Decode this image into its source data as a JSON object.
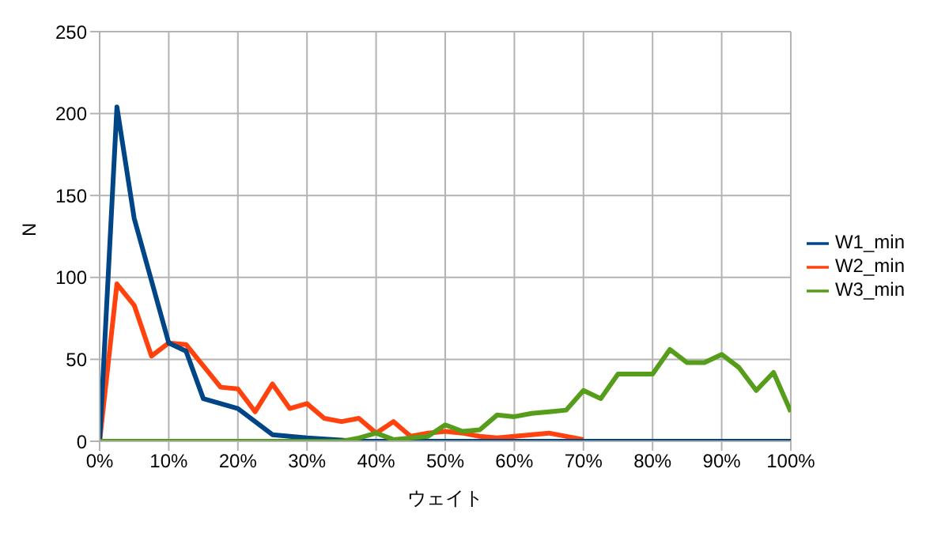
{
  "chart_data": {
    "type": "line",
    "xlabel": "ウェイト",
    "ylabel": "N",
    "x": [
      0,
      2.5,
      5,
      7.5,
      10,
      12.5,
      15,
      17.5,
      20,
      22.5,
      25,
      27.5,
      30,
      32.5,
      35,
      37.5,
      40,
      42.5,
      45,
      47.5,
      50,
      52.5,
      55,
      57.5,
      60,
      62.5,
      65,
      67.5,
      70,
      72.5,
      75,
      77.5,
      80,
      82.5,
      85,
      87.5,
      90,
      92.5,
      95,
      97.5,
      100
    ],
    "series": [
      {
        "name": "W2_min",
        "color": "#ff420e",
        "values": [
          0,
          96,
          83,
          52,
          60,
          59,
          46,
          33,
          32,
          18,
          35,
          20,
          23,
          14,
          12,
          14,
          5,
          12,
          3,
          5,
          6,
          5,
          3,
          2,
          null,
          null,
          5,
          null,
          1,
          null,
          null,
          null,
          null,
          null,
          null,
          null,
          null,
          null,
          null,
          null,
          null
        ]
      },
      {
        "name": "W1_min",
        "color": "#004586",
        "values": [
          0,
          204,
          136,
          98,
          60,
          55,
          26,
          23,
          20,
          12,
          4,
          null,
          2,
          null,
          null,
          0,
          0,
          0,
          0,
          0,
          0,
          0,
          0,
          0,
          0,
          0,
          0,
          0,
          0,
          0,
          0,
          0,
          0,
          0,
          0,
          0,
          0,
          0,
          0,
          0,
          0
        ]
      },
      {
        "name": "W3_min",
        "color": "#579d1c",
        "values": [
          0,
          0,
          0,
          0,
          0,
          0,
          0,
          0,
          0,
          0,
          0,
          0,
          0,
          0,
          0,
          2,
          5,
          1,
          2,
          3,
          10,
          6,
          7,
          16,
          15,
          17,
          18,
          19,
          31,
          26,
          41,
          41,
          41,
          56,
          48,
          48,
          53,
          45,
          31,
          42,
          18
        ]
      }
    ],
    "xlim": [
      0,
      100
    ],
    "xticks": [
      {
        "value": 0,
        "label": "0%"
      },
      {
        "value": 10,
        "label": "10%"
      },
      {
        "value": 20,
        "label": "20%"
      },
      {
        "value": 30,
        "label": "30%"
      },
      {
        "value": 40,
        "label": "40%"
      },
      {
        "value": 50,
        "label": "50%"
      },
      {
        "value": 60,
        "label": "60%"
      },
      {
        "value": 70,
        "label": "70%"
      },
      {
        "value": 80,
        "label": "80%"
      },
      {
        "value": 90,
        "label": "90%"
      },
      {
        "value": 100,
        "label": "100%"
      }
    ],
    "ylim": [
      0,
      250
    ],
    "yticks": [
      0,
      50,
      100,
      150,
      200,
      250
    ],
    "grid": true,
    "legend": "right",
    "marker": "none",
    "line_style": "solid"
  }
}
